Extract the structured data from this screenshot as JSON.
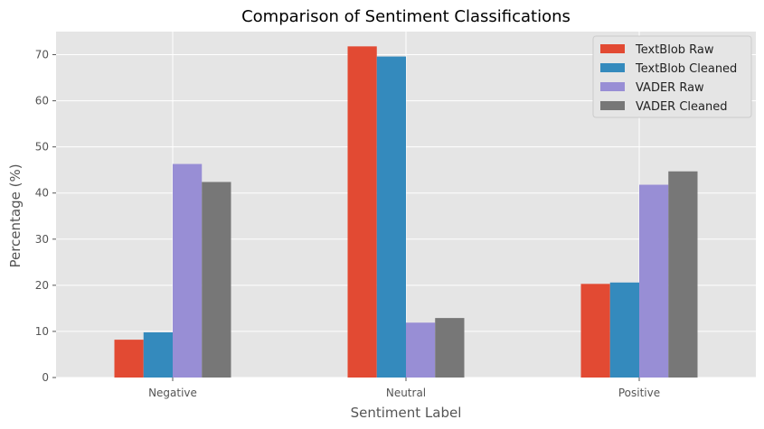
{
  "chart_data": {
    "type": "bar",
    "title": "Comparison of Sentiment Classifications",
    "xlabel": "Sentiment Label",
    "ylabel": "Percentage (%)",
    "categories": [
      "Negative",
      "Neutral",
      "Positive"
    ],
    "series": [
      {
        "name": "TextBlob Raw",
        "color": "#E24A33",
        "values": [
          8.2,
          71.8,
          20.3
        ]
      },
      {
        "name": "TextBlob Cleaned",
        "color": "#348ABD",
        "values": [
          9.8,
          69.6,
          20.6
        ]
      },
      {
        "name": "VADER Raw",
        "color": "#988ED5",
        "values": [
          46.3,
          11.9,
          41.8
        ]
      },
      {
        "name": "VADER Cleaned",
        "color": "#777777",
        "values": [
          42.4,
          12.9,
          44.7
        ]
      }
    ],
    "ylim": [
      0,
      75
    ],
    "yticks": [
      0,
      10,
      20,
      30,
      40,
      50,
      60,
      70
    ],
    "grid": true,
    "background": "#E5E5E5",
    "legend_position": "top-right"
  }
}
